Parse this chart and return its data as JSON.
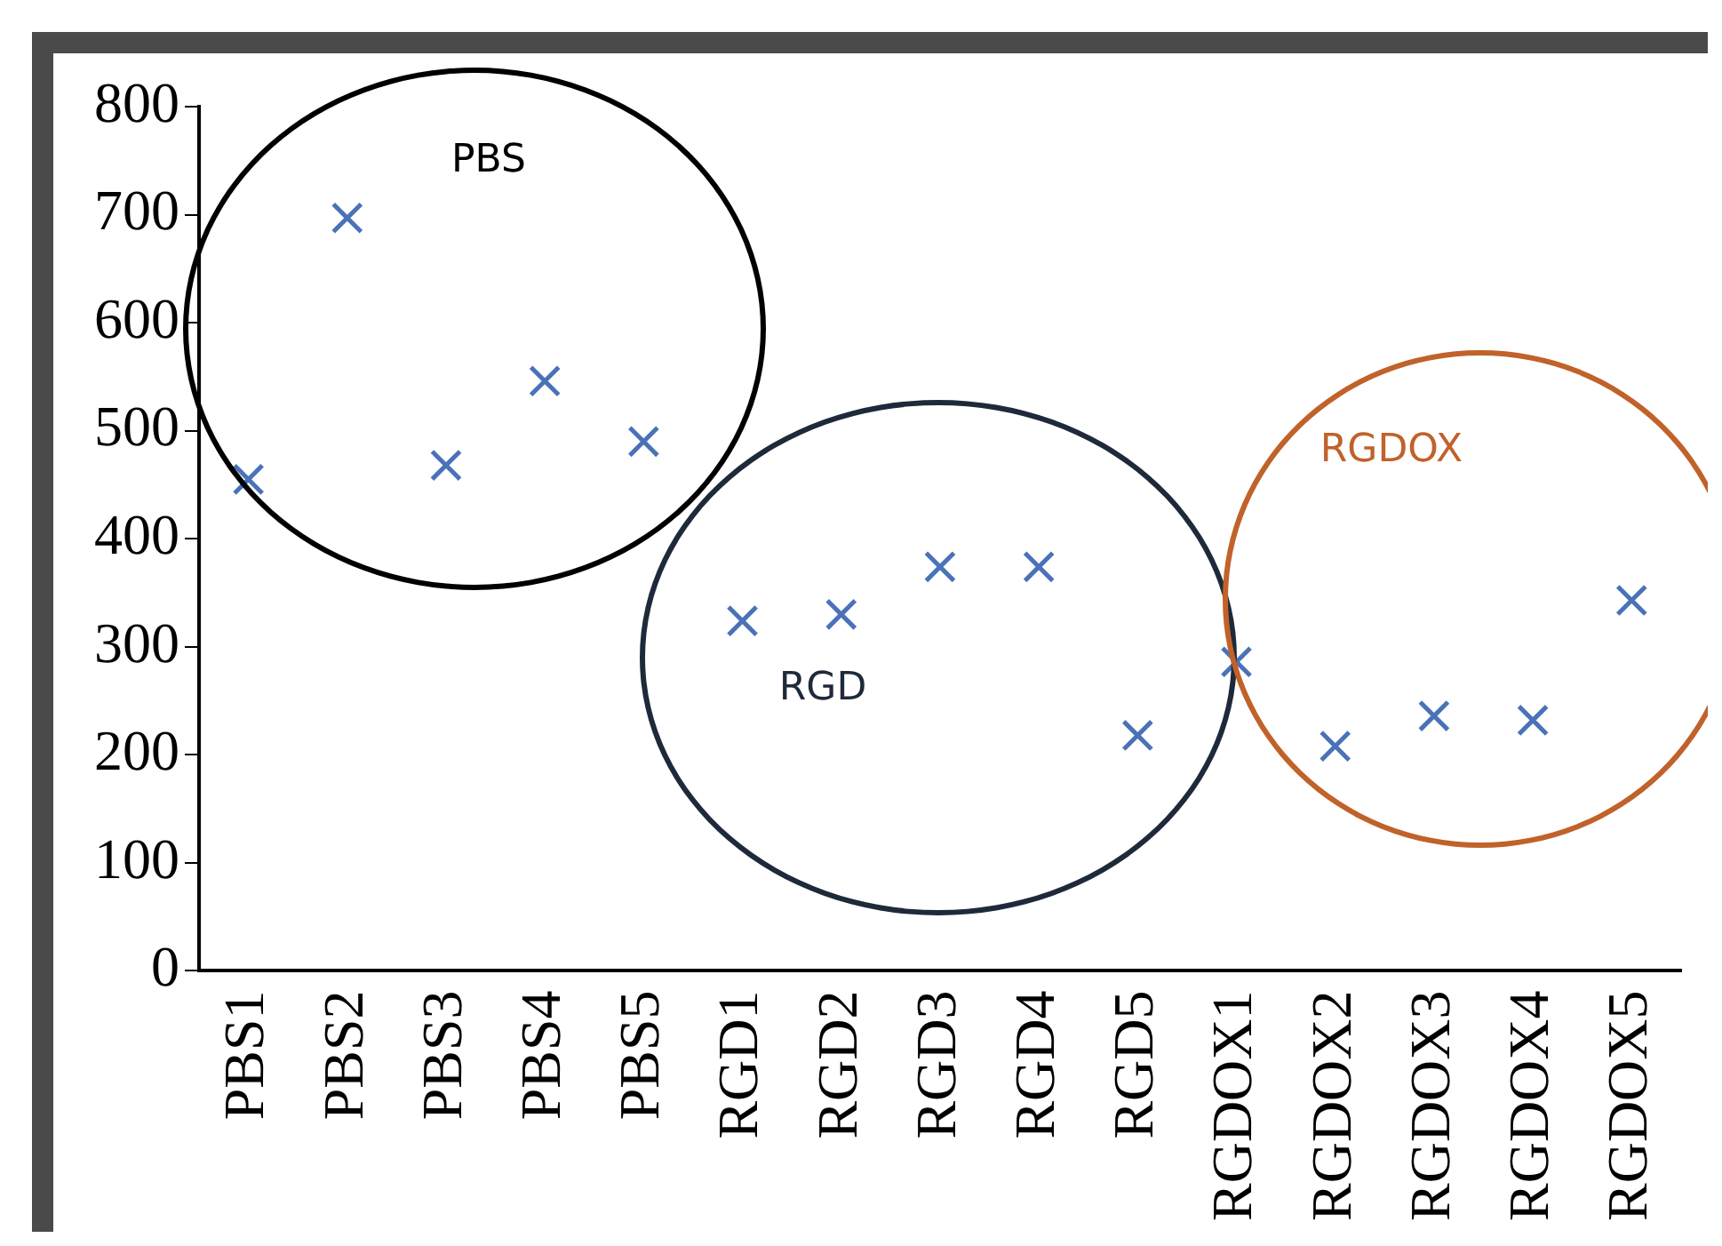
{
  "chart_data": {
    "type": "scatter",
    "categories": [
      "PBS1",
      "PBS2",
      "PBS3",
      "PBS4",
      "PBS5",
      "RGD1",
      "RGD2",
      "RGD3",
      "RGD4",
      "RGD5",
      "RGDOX1",
      "RGDOX2",
      "RGDOX3",
      "RGDOX4",
      "RGDOX5"
    ],
    "series": [
      {
        "color": "#4a72b8",
        "values": [
          455,
          697,
          468,
          546,
          490,
          324,
          330,
          374,
          374,
          218,
          286,
          208,
          236,
          232,
          343
        ]
      }
    ],
    "ylim": [
      0,
      800
    ],
    "yticks": [
      0,
      100,
      200,
      300,
      400,
      500,
      600,
      700,
      800
    ],
    "grid": false,
    "legend": false,
    "marker": "cross",
    "annotations": [
      "PBS",
      "RGD",
      "RGDOX"
    ]
  }
}
